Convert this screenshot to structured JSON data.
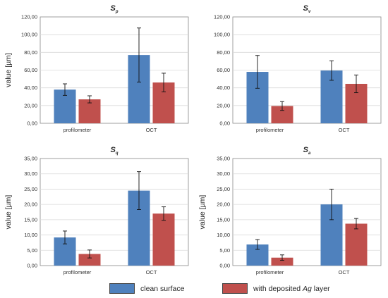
{
  "colors": {
    "clean": "#4f81bd",
    "deposited": "#c0504d",
    "grid": "#d9d9d9",
    "axis": "#888888"
  },
  "legend": {
    "clean_label": "clean surface",
    "deposited_prefix": "with deposited ",
    "deposited_italic": "Ag",
    "deposited_suffix": " layer"
  },
  "chart_data": [
    {
      "type": "bar",
      "title": "S",
      "title_subscript": "p",
      "ylabel": "value [µm]",
      "ylim": [
        0,
        120
      ],
      "ytick_step": 20,
      "yticks": [
        "0,00",
        "20,00",
        "40,00",
        "60,00",
        "80,00",
        "100,00",
        "120,00"
      ],
      "categories": [
        "profilometer",
        "OCT"
      ],
      "series": [
        {
          "name": "clean surface",
          "values": [
            38,
            77
          ],
          "errors": [
            6.5,
            30.5
          ]
        },
        {
          "name": "with deposited Ag layer",
          "values": [
            27,
            46
          ],
          "errors": [
            4,
            10.5
          ]
        }
      ],
      "grid": true
    },
    {
      "type": "bar",
      "title": "S",
      "title_subscript": "v",
      "ylabel": "",
      "ylim": [
        0,
        120
      ],
      "ytick_step": 20,
      "yticks": [
        "0,00",
        "20,00",
        "40,00",
        "60,00",
        "80,00",
        "100,00",
        "120,00"
      ],
      "categories": [
        "profilometer",
        "OCT"
      ],
      "series": [
        {
          "name": "clean surface",
          "values": [
            58,
            59.5
          ],
          "errors": [
            18.5,
            11
          ]
        },
        {
          "name": "with deposited Ag layer",
          "values": [
            19.5,
            44.5
          ],
          "errors": [
            5,
            10
          ]
        }
      ],
      "grid": true
    },
    {
      "type": "bar",
      "title": "S",
      "title_subscript": "q",
      "ylabel": "value [µm]",
      "ylim": [
        0,
        35
      ],
      "ytick_step": 5,
      "yticks": [
        "0,00",
        "5,00",
        "10,00",
        "15,00",
        "20,00",
        "25,00",
        "30,00",
        "35,00"
      ],
      "categories": [
        "profilometer",
        "OCT"
      ],
      "series": [
        {
          "name": "clean surface",
          "values": [
            9.2,
            24.5
          ],
          "errors": [
            2.1,
            6.2
          ]
        },
        {
          "name": "with deposited Ag layer",
          "values": [
            3.8,
            17
          ],
          "errors": [
            1.3,
            2.2
          ]
        }
      ],
      "grid": true
    },
    {
      "type": "bar",
      "title": "S",
      "title_subscript": "a",
      "ylabel": "value [µm]",
      "ylim": [
        0,
        35
      ],
      "ytick_step": 5,
      "yticks": [
        "0,00",
        "5,00",
        "10,00",
        "15,00",
        "20,00",
        "25,00",
        "30,00",
        "35,00"
      ],
      "categories": [
        "profilometer",
        "OCT"
      ],
      "series": [
        {
          "name": "clean surface",
          "values": [
            6.9,
            20
          ],
          "errors": [
            1.6,
            5
          ]
        },
        {
          "name": "with deposited Ag layer",
          "values": [
            2.6,
            13.7
          ],
          "errors": [
            0.9,
            1.7
          ]
        }
      ],
      "grid": true
    }
  ]
}
